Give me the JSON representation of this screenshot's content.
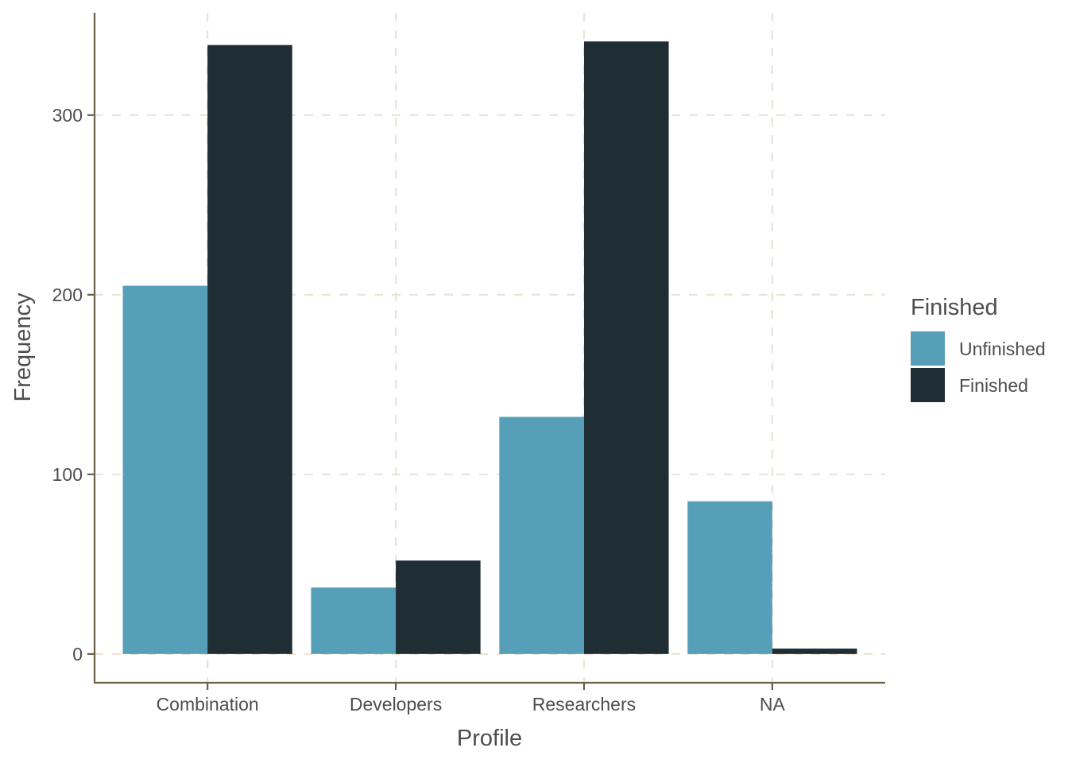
{
  "chart_data": {
    "type": "bar",
    "categories": [
      "Combination",
      "Developers",
      "Researchers",
      "NA"
    ],
    "series": [
      {
        "name": "Unfinished",
        "values": [
          205,
          37,
          132,
          85
        ],
        "color": "#569fb8"
      },
      {
        "name": "Finished",
        "values": [
          339,
          52,
          341,
          3
        ],
        "color": "#1f2d34"
      }
    ],
    "xlabel": "Profile",
    "ylabel": "Frequency",
    "ylim": [
      -16,
      357
    ],
    "yticks": [
      0,
      100,
      200,
      300
    ],
    "grid": true,
    "legend": {
      "title": "Finished",
      "placement": "right"
    }
  }
}
